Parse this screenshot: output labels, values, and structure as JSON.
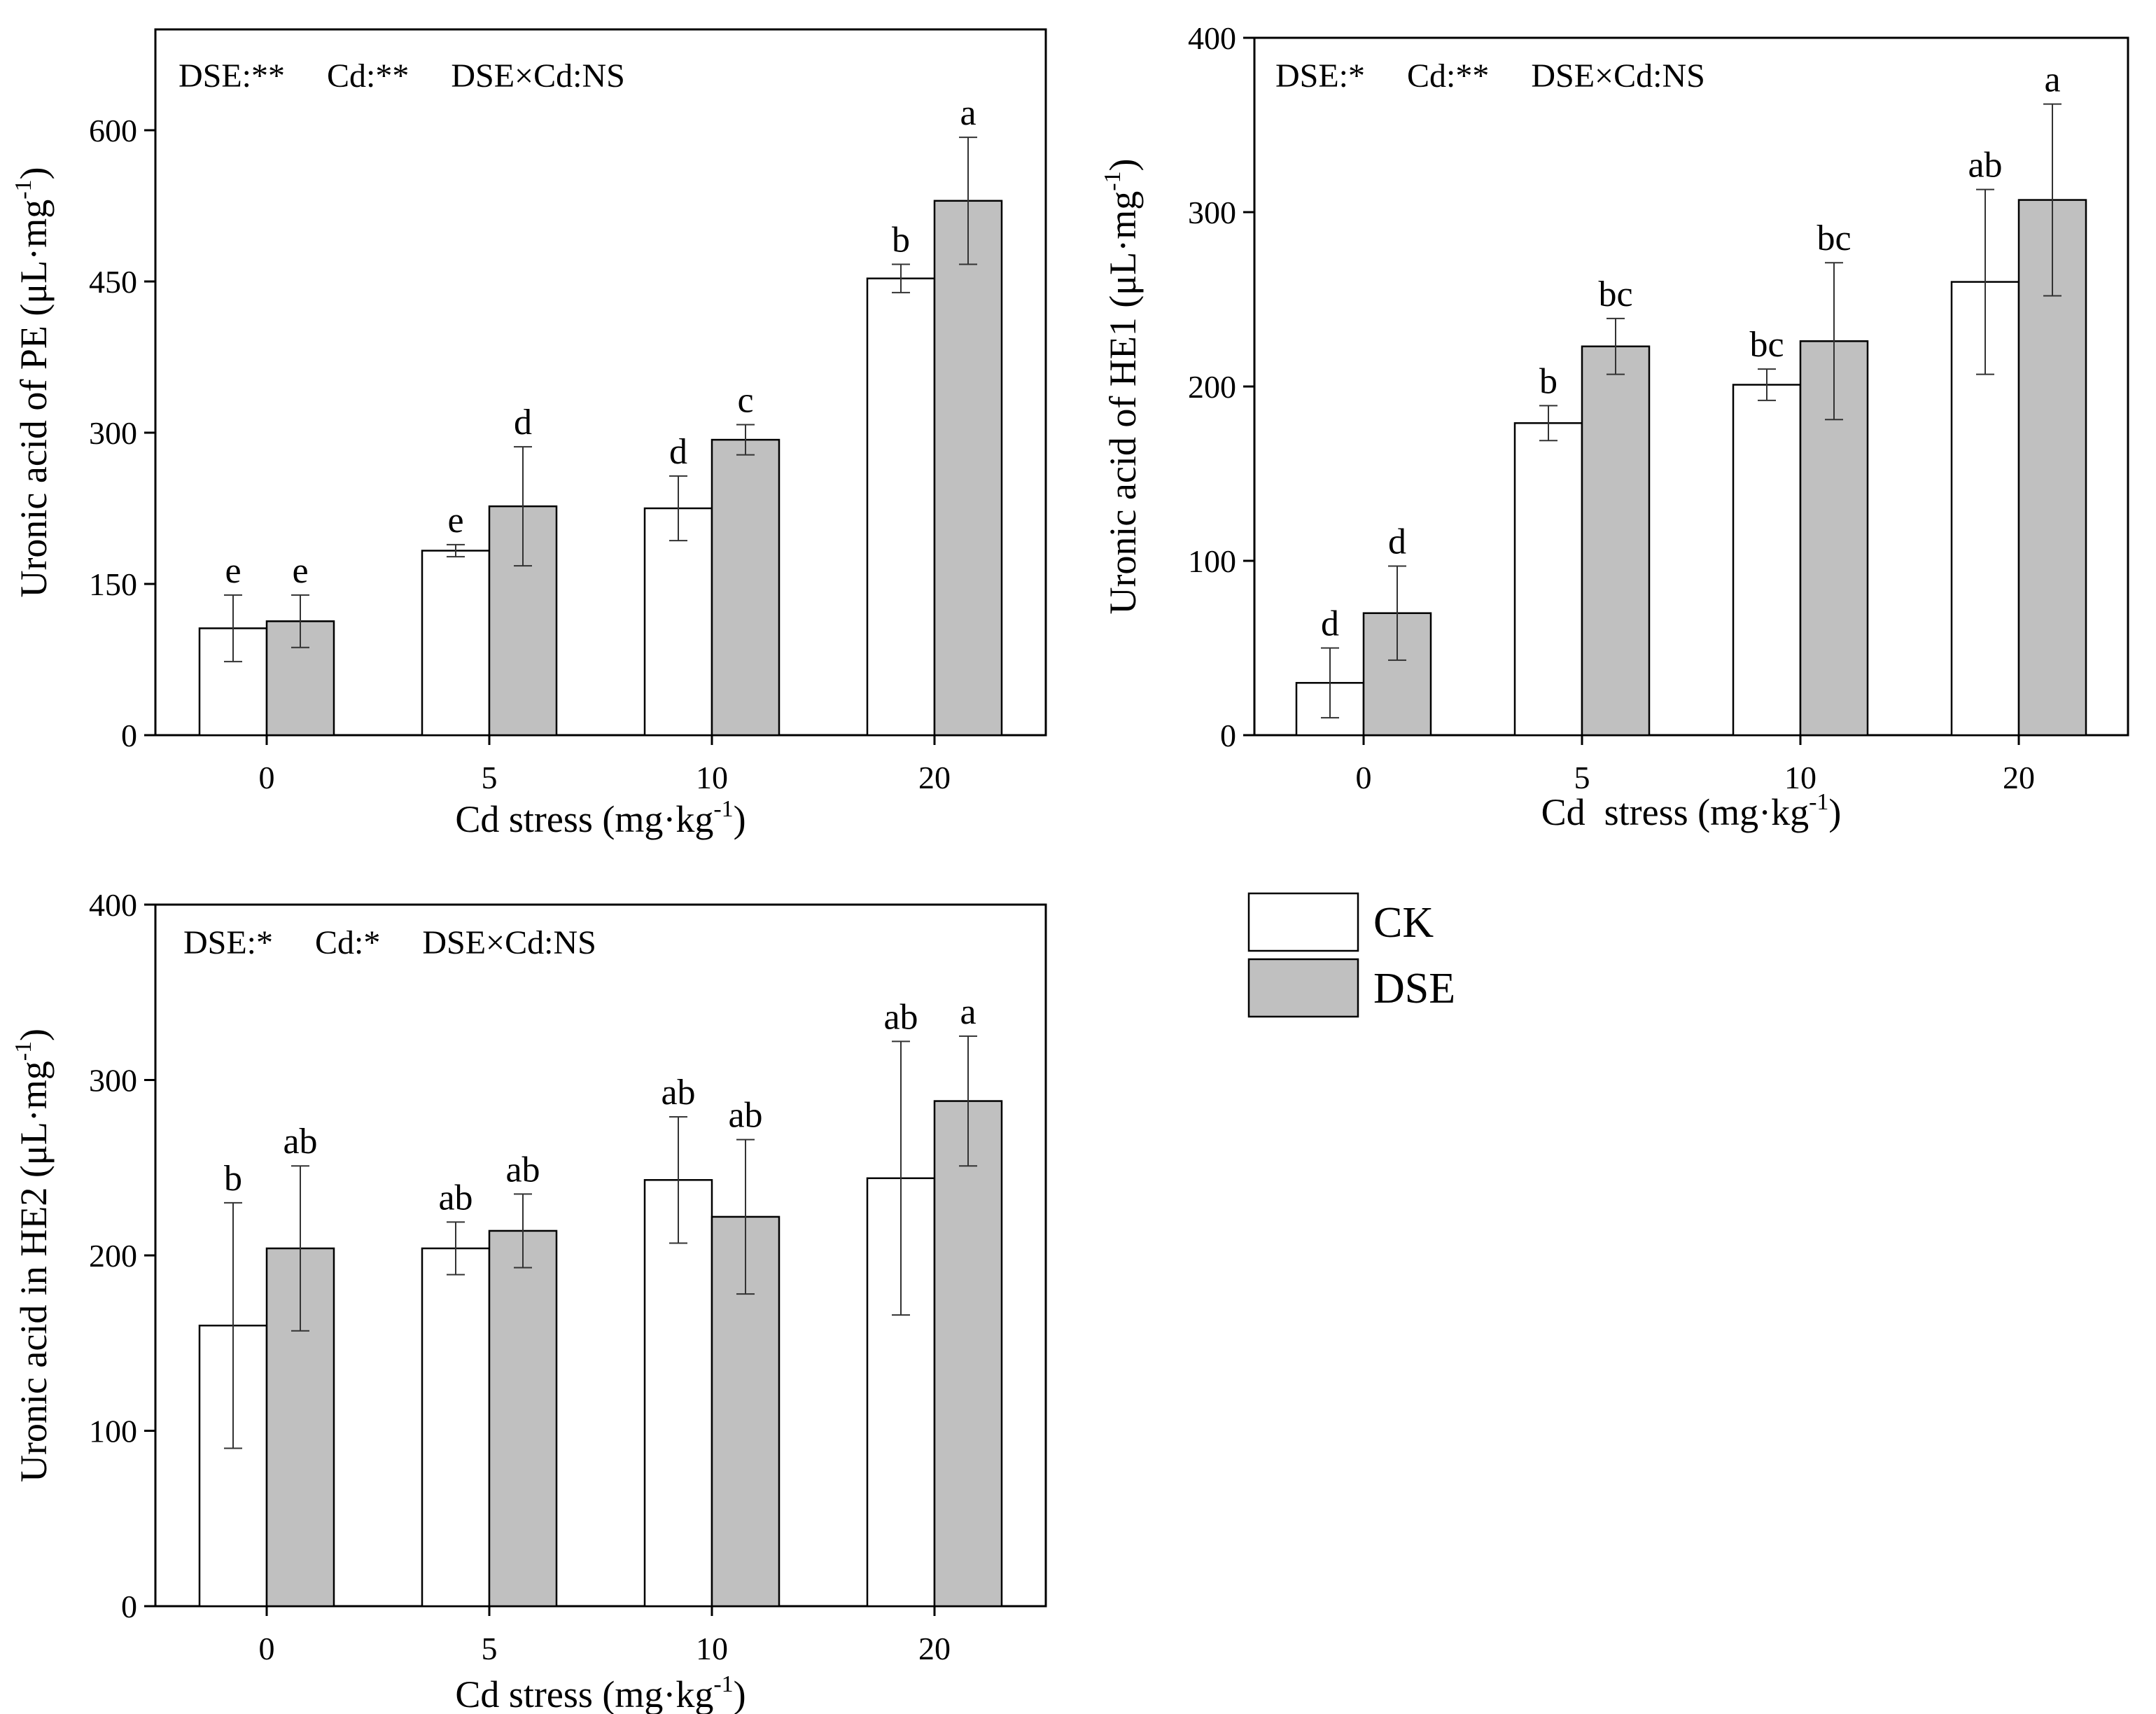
{
  "figure": {
    "legend": [
      {
        "label": "CK",
        "color": "#ffffff"
      },
      {
        "label": "DSE",
        "color": "#c0c0c0"
      }
    ]
  },
  "chart_data": [
    {
      "type": "bar",
      "title": "",
      "stats_annotation": "DSE:**     Cd:**     DSE×Cd:NS",
      "xlabel": "Cd stress (mg·kg",
      "xlabel_sup": "-1",
      "xlabel_end": ")",
      "ylabel": "Uronic acid of PE (μL·mg",
      "ylabel_sup": "-1",
      "ylabel_end": ")",
      "categories": [
        "0",
        "5",
        "10",
        "20"
      ],
      "ylim": [
        0,
        700
      ],
      "yticks": [
        0,
        150,
        300,
        450,
        600
      ],
      "series": [
        {
          "name": "CK",
          "color": "#ffffff",
          "values": [
            106,
            183,
            225,
            453
          ],
          "errors": [
            33,
            6,
            32,
            14
          ],
          "labels": [
            "e",
            "e",
            "d",
            "b"
          ]
        },
        {
          "name": "DSE",
          "color": "#c0c0c0",
          "values": [
            113,
            227,
            293,
            530
          ],
          "errors": [
            26,
            59,
            15,
            63
          ],
          "labels": [
            "e",
            "d",
            "c",
            "a"
          ]
        }
      ]
    },
    {
      "type": "bar",
      "title": "",
      "stats_annotation": "DSE:*     Cd:**     DSE×Cd:NS",
      "xlabel": "Cd  stress (mg·kg",
      "xlabel_sup": "-1",
      "xlabel_end": ")",
      "ylabel": "Uronic acid of HE1 (μL·mg",
      "ylabel_sup": "-1",
      "ylabel_end": ")",
      "categories": [
        "0",
        "5",
        "10",
        "20"
      ],
      "ylim": [
        0,
        400
      ],
      "yticks": [
        0,
        100,
        200,
        300,
        400
      ],
      "series": [
        {
          "name": "CK",
          "color": "#ffffff",
          "values": [
            30,
            179,
            201,
            260
          ],
          "errors": [
            20,
            10,
            9,
            53
          ],
          "labels": [
            "d",
            "b",
            "bc",
            "ab"
          ]
        },
        {
          "name": "DSE",
          "color": "#c0c0c0",
          "values": [
            70,
            223,
            226,
            307
          ],
          "errors": [
            27,
            16,
            45,
            55
          ],
          "labels": [
            "d",
            "bc",
            "bc",
            "a"
          ]
        }
      ]
    },
    {
      "type": "bar",
      "title": "",
      "stats_annotation": "DSE:*     Cd:*     DSE×Cd:NS",
      "xlabel": "Cd stress (mg·kg",
      "xlabel_sup": "-1",
      "xlabel_end": ")",
      "ylabel": "Uronic acid in HE2 (μL·mg",
      "ylabel_sup": "-1",
      "ylabel_end": ")",
      "categories": [
        "0",
        "5",
        "10",
        "20"
      ],
      "ylim": [
        0,
        400
      ],
      "yticks": [
        0,
        100,
        200,
        300,
        400
      ],
      "series": [
        {
          "name": "CK",
          "color": "#ffffff",
          "values": [
            160,
            204,
            243,
            244
          ],
          "errors": [
            70,
            15,
            36,
            78
          ],
          "labels": [
            "b",
            "ab",
            "ab",
            "ab"
          ]
        },
        {
          "name": "DSE",
          "color": "#c0c0c0",
          "values": [
            204,
            214,
            222,
            288
          ],
          "errors": [
            47,
            21,
            44,
            37
          ],
          "labels": [
            "ab",
            "ab",
            "ab",
            "a"
          ]
        }
      ]
    }
  ]
}
